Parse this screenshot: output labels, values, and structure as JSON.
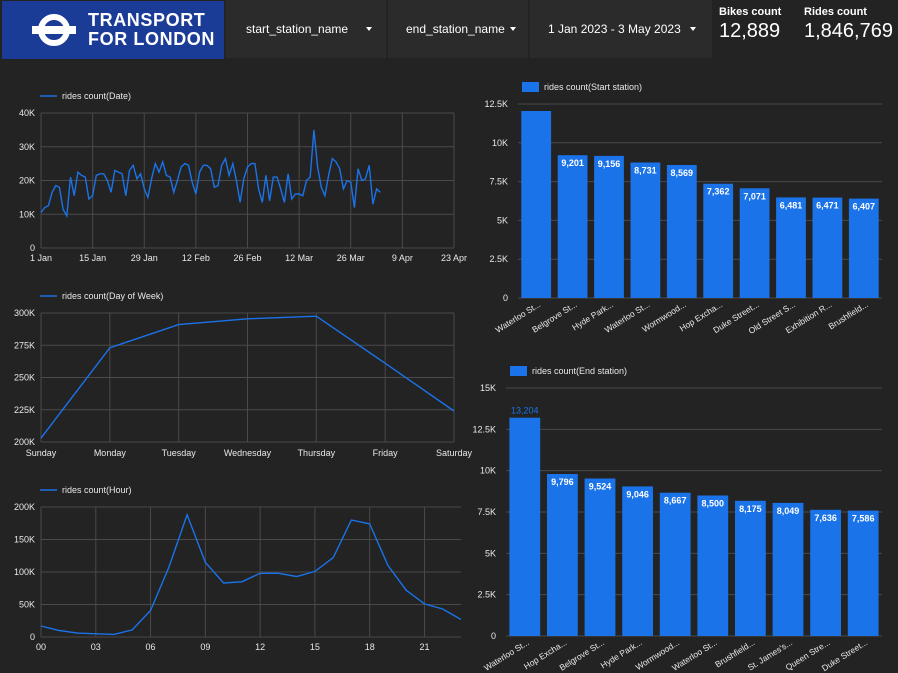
{
  "header": {
    "logo_line1": "TRANSPORT",
    "logo_line2": "FOR LONDON",
    "filters": [
      {
        "label": "start_station_name"
      },
      {
        "label": "end_station_name"
      },
      {
        "label": "1 Jan 2023 - 3 May 2023"
      }
    ],
    "kpis": [
      {
        "title": "Bikes count",
        "value": "12,889"
      },
      {
        "title": "Rides count",
        "value": "1,846,769"
      }
    ]
  },
  "colors": {
    "accent": "#1a73e8",
    "background": "#232323",
    "logo_bg": "#1b3c96"
  },
  "chart_data": [
    {
      "id": "date",
      "type": "line",
      "legend": "rides count(Date)",
      "x_ticks": [
        "1 Jan",
        "15 Jan",
        "29 Jan",
        "12 Feb",
        "26 Feb",
        "12 Mar",
        "26 Mar",
        "9 Apr",
        "23 Apr"
      ],
      "y_ticks": [
        "0",
        "10K",
        "20K",
        "30K",
        "40K"
      ],
      "ylim": [
        0,
        40000
      ],
      "x_range_days": [
        0,
        112
      ],
      "values": [
        10500,
        12000,
        12500,
        16500,
        18500,
        18000,
        11500,
        9500,
        21000,
        15500,
        22500,
        21500,
        21000,
        14500,
        15500,
        21500,
        22000,
        22000,
        20000,
        16500,
        23000,
        22500,
        22000,
        15500,
        23000,
        24500,
        20500,
        22000,
        17500,
        15000,
        20500,
        25000,
        22500,
        25500,
        21500,
        21000,
        16500,
        20000,
        24000,
        25000,
        24500,
        19500,
        16000,
        22500,
        24500,
        24500,
        23500,
        18000,
        18500,
        24500,
        26500,
        21500,
        25000,
        20000,
        13500,
        20500,
        24000,
        25000,
        25000,
        17500,
        13500,
        21500,
        14000,
        21000,
        21000,
        17500,
        13500,
        22000,
        14500,
        16000,
        16000,
        15500,
        20000,
        21000,
        35000,
        24000,
        18000,
        15500,
        21500,
        26500,
        25500,
        23500,
        17500,
        20000,
        19500,
        12000,
        23500,
        20000,
        20500,
        24500,
        13000,
        17500,
        16500
      ],
      "grid": true
    },
    {
      "id": "dow",
      "type": "line",
      "legend": "rides count(Day of Week)",
      "categories": [
        "Sunday",
        "Monday",
        "Tuesday",
        "Wednesday",
        "Thursday",
        "Friday",
        "Saturday"
      ],
      "y_ticks": [
        "200K",
        "225K",
        "250K",
        "275K",
        "300K"
      ],
      "ylim": [
        200000,
        300000
      ],
      "values": [
        203000,
        273000,
        291000,
        295500,
        297500,
        261000,
        224000
      ],
      "grid": true
    },
    {
      "id": "hour",
      "type": "line",
      "legend": "rides count(Hour)",
      "x_ticks": [
        "00",
        "03",
        "06",
        "09",
        "12",
        "15",
        "18",
        "21"
      ],
      "y_ticks": [
        "0",
        "50K",
        "100K",
        "150K",
        "200K"
      ],
      "ylim": [
        0,
        200000
      ],
      "values": [
        17000,
        10000,
        6000,
        5000,
        4000,
        11000,
        41000,
        107000,
        188000,
        115000,
        83000,
        85000,
        98000,
        98000,
        93000,
        101000,
        122000,
        180000,
        174000,
        110000,
        72000,
        51000,
        43000,
        27000
      ],
      "grid": true
    },
    {
      "id": "start_station",
      "type": "bar",
      "legend": "rides count(Start station)",
      "categories": [
        "Waterloo St...",
        "Belgrove St...",
        "Hyde Park...",
        "Waterloo St...",
        "Wormwood...",
        "Hop Excha...",
        "Duke Street...",
        "Old Street S...",
        "Exhibition R...",
        "Brushfield..."
      ],
      "values": [
        12050,
        9201,
        9156,
        8731,
        8569,
        7362,
        7071,
        6481,
        6471,
        6407
      ],
      "labels": [
        "",
        "9,201",
        "9,156",
        "8,731",
        "8,569",
        "7,362",
        "7,071",
        "6,481",
        "6,471",
        "6,407"
      ],
      "y_ticks": [
        "0",
        "2.5K",
        "5K",
        "7.5K",
        "10K",
        "12.5K"
      ],
      "ylim": [
        0,
        12500
      ],
      "grid": true
    },
    {
      "id": "end_station",
      "type": "bar",
      "legend": "rides count(End station)",
      "categories": [
        "Waterloo St...",
        "Hop Excha...",
        "Belgrove St...",
        "Hyde Park...",
        "Wormwood...",
        "Waterloo St...",
        "Brushfield...",
        "St. James's...",
        "Queen Stre...",
        "Duke Street..."
      ],
      "values": [
        13204,
        9796,
        9524,
        9046,
        8667,
        8500,
        8175,
        8049,
        7636,
        7586
      ],
      "labels": [
        "13,204",
        "9,796",
        "9,524",
        "9,046",
        "8,667",
        "8,500",
        "8,175",
        "8,049",
        "7,636",
        "7,586"
      ],
      "y_ticks": [
        "0",
        "2.5K",
        "5K",
        "7.5K",
        "10K",
        "12.5K",
        "15K"
      ],
      "ylim": [
        0,
        15000
      ],
      "grid": true
    }
  ]
}
